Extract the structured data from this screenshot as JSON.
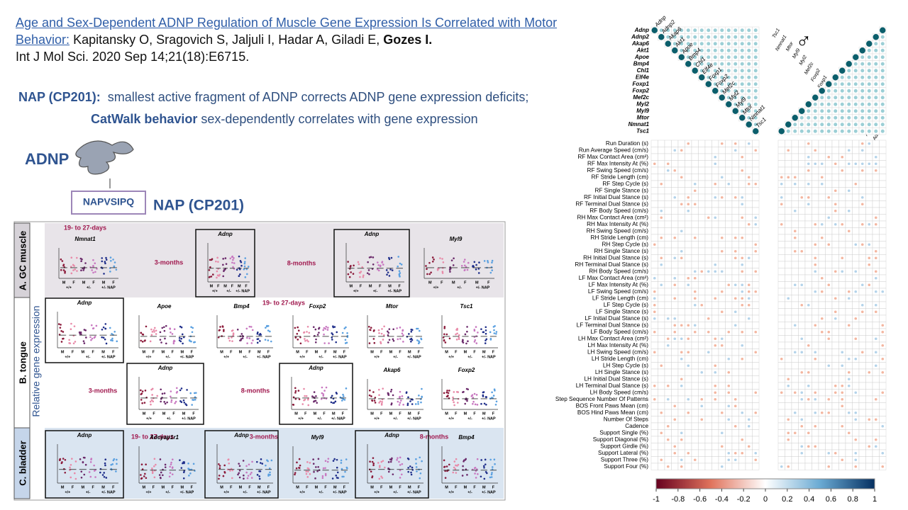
{
  "citation": {
    "link": "Age and Sex-Dependent ADNP Regulation of Muscle Gene Expression Is Correlated with Motor Behavior:",
    "authors": "Kapitansky O, Sragovich S, Jaljuli I, Hadar A, Giladi E,",
    "senior": "Gozes I.",
    "journal": "Int J Mol Sci. 2020 Sep 14;21(18):E6715."
  },
  "summary": [
    {
      "bold": "NAP (CP201):",
      "text": "smallest active fragment of ADNP corrects ADNP gene expression deficits;"
    },
    {
      "bold": "CatWalk behavior",
      "text": "sex-dependently correlates with gene expression"
    }
  ],
  "diagram": {
    "protein": "ADNP",
    "peptide": "NAPVSIPQ",
    "drug": "NAP (CP201)"
  },
  "figure": {
    "y_label": "Relative gene expression",
    "panels": [
      "A. GC muscle",
      "B. tongue",
      "C. bladder"
    ],
    "sex_labels": [
      "M",
      "F"
    ],
    "genotype_labels": [
      "+/+",
      "+/-",
      "+/- NAP"
    ],
    "annotations": [
      "19- to 27-days",
      "3-months",
      "8-months",
      "19- to 27-days",
      "3-months",
      "8-months",
      "19- to 27-days",
      "3-months",
      "8-months"
    ],
    "plots": [
      "Nmnat1",
      "Adnp",
      "Adnp",
      "Myl9",
      "Adnp",
      "Apoe",
      "Bmp4",
      "Foxp2",
      "Mtor",
      "Tsc1",
      "Adnp",
      "Adnp",
      "Akap6",
      "Foxp2",
      "Adnp",
      "Adcyap1r1",
      "Adnp",
      "Myl9",
      "Adnp",
      "Bmp4"
    ]
  },
  "heatmap": {
    "symbols": [
      "♀",
      "♂"
    ],
    "genes": [
      "Adnp",
      "Adnp2",
      "Akap6",
      "Akt1",
      "Apoe",
      "Bmp4",
      "Chl1",
      "Elf4e",
      "Foxp1",
      "Foxp2",
      "Mef2c",
      "Myl2",
      "Myl9",
      "Mtor",
      "Nmnat1",
      "Tsc1"
    ],
    "measures": [
      "Run Duration (s)",
      "Run Average Speed (cm/s)",
      "RF Max Contact Area (cm²)",
      "RF Max Intensity At (%)",
      "RF Swing Speed (cm/s)",
      "RF Stride Length (cm)",
      "RF Step Cycle (s)",
      "RF Single Stance (s)",
      "RF Initial Dual Stance (s)",
      "RF Terminal Dual Stance (s)",
      "RF Body Speed (cm/s)",
      "RH Max Contact Area (cm²)",
      "RH Max Intensity At (%)",
      "RH Swing Speed (cm/s)",
      "RH Stride Length (cm)",
      "RH Step Cycle (s)",
      "RH Single Stance (s)",
      "RH Initial Dual Stance (s)",
      "RH Terminal Dual Stance (s)",
      "RH Body Speed (cm/s)",
      "LF Max Contact Area (cm²)",
      "LF Max Intensity At (%)",
      "LF Swing Speed (cm/s)",
      "LF Stride Length (cm)",
      "LF Step Cycle (s)",
      "LF Single Stance (s)",
      "LF Initial Dual Stance (s)",
      "LF Terminal Dual Stance (s)",
      "LF Body Speed (cm/s)",
      "LH Max Contact Area (cm²)",
      "LH Max Intensity At (%)",
      "LH Swing Speed (cm/s)",
      "LH Stride Length (cm)",
      "LH Step Cycle (s)",
      "LH Single Stance (s)",
      "LH Initial Dual Stance (s)",
      "LH Terminal Dual Stance (s)",
      "LH Body Speed (cm/s)",
      "Step Sequence Number Of Patterns",
      "BOS Front Paws Mean (cm)",
      "BOS Hind Paws Mean (cm)",
      "Number Of Steps",
      "Cadence",
      "Support Single (%)",
      "Support Diagonal (%)",
      "Support Girdle (%)",
      "Support Lateral (%)",
      "Support Three (%)",
      "Support Four (%)"
    ],
    "colorbar_ticks": [
      -1,
      -0.8,
      -0.6,
      -0.4,
      -0.2,
      0,
      0.2,
      0.4,
      0.6,
      0.8,
      1
    ]
  }
}
